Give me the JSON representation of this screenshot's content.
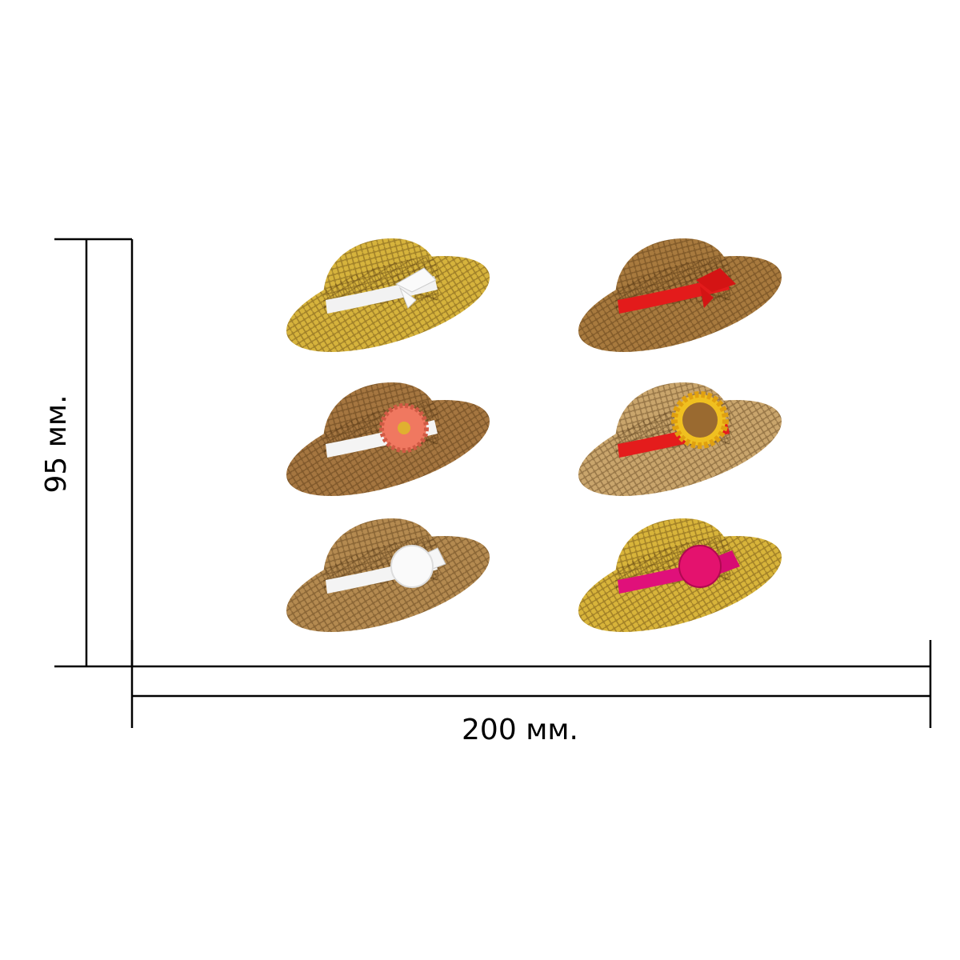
{
  "width_label": "200 мм.",
  "height_label": "95 мм."
}
